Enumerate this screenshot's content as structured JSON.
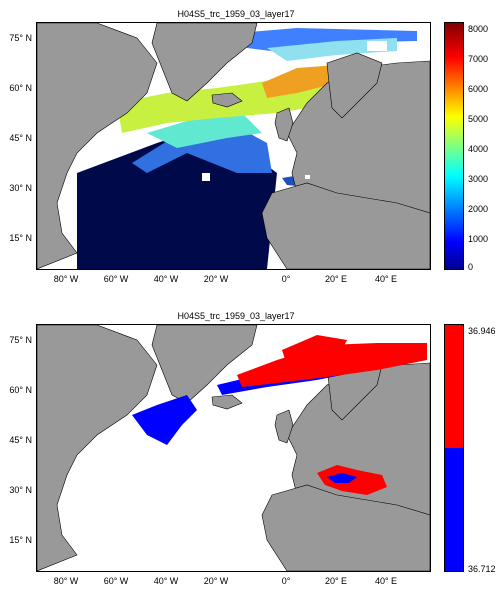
{
  "panels": [
    {
      "title": "H04S5_trc_1959_03_layer17",
      "lat_labels": [
        "75° N",
        "60° N",
        "45° N",
        "30° N",
        "15° N"
      ],
      "lon_labels": [
        "80° W",
        "60° W",
        "40° W",
        "20° W",
        "0°",
        "20° E",
        "40° E"
      ],
      "colorbar": {
        "type": "jet",
        "ticks": [
          "8000",
          "7000",
          "6000",
          "5000",
          "4000",
          "3000",
          "2000",
          "1000",
          "0"
        ],
        "min": 0,
        "max": 8000
      }
    },
    {
      "title": "H04S5_trc_1959_03_layer17",
      "lat_labels": [
        "75° N",
        "60° N",
        "45° N",
        "30° N",
        "15° N"
      ],
      "lon_labels": [
        "80° W",
        "60° W",
        "40° W",
        "20° W",
        "0°",
        "20° E",
        "40° E"
      ],
      "colorbar": {
        "type": "two-class",
        "top_label": "36.946",
        "bottom_label": "36.712",
        "top_color": "#ff0000",
        "bottom_color": "#0000ff"
      }
    }
  ],
  "colors": {
    "land": "#999999",
    "no_data": "#ffffff",
    "deep_blue": "#000a4a"
  }
}
